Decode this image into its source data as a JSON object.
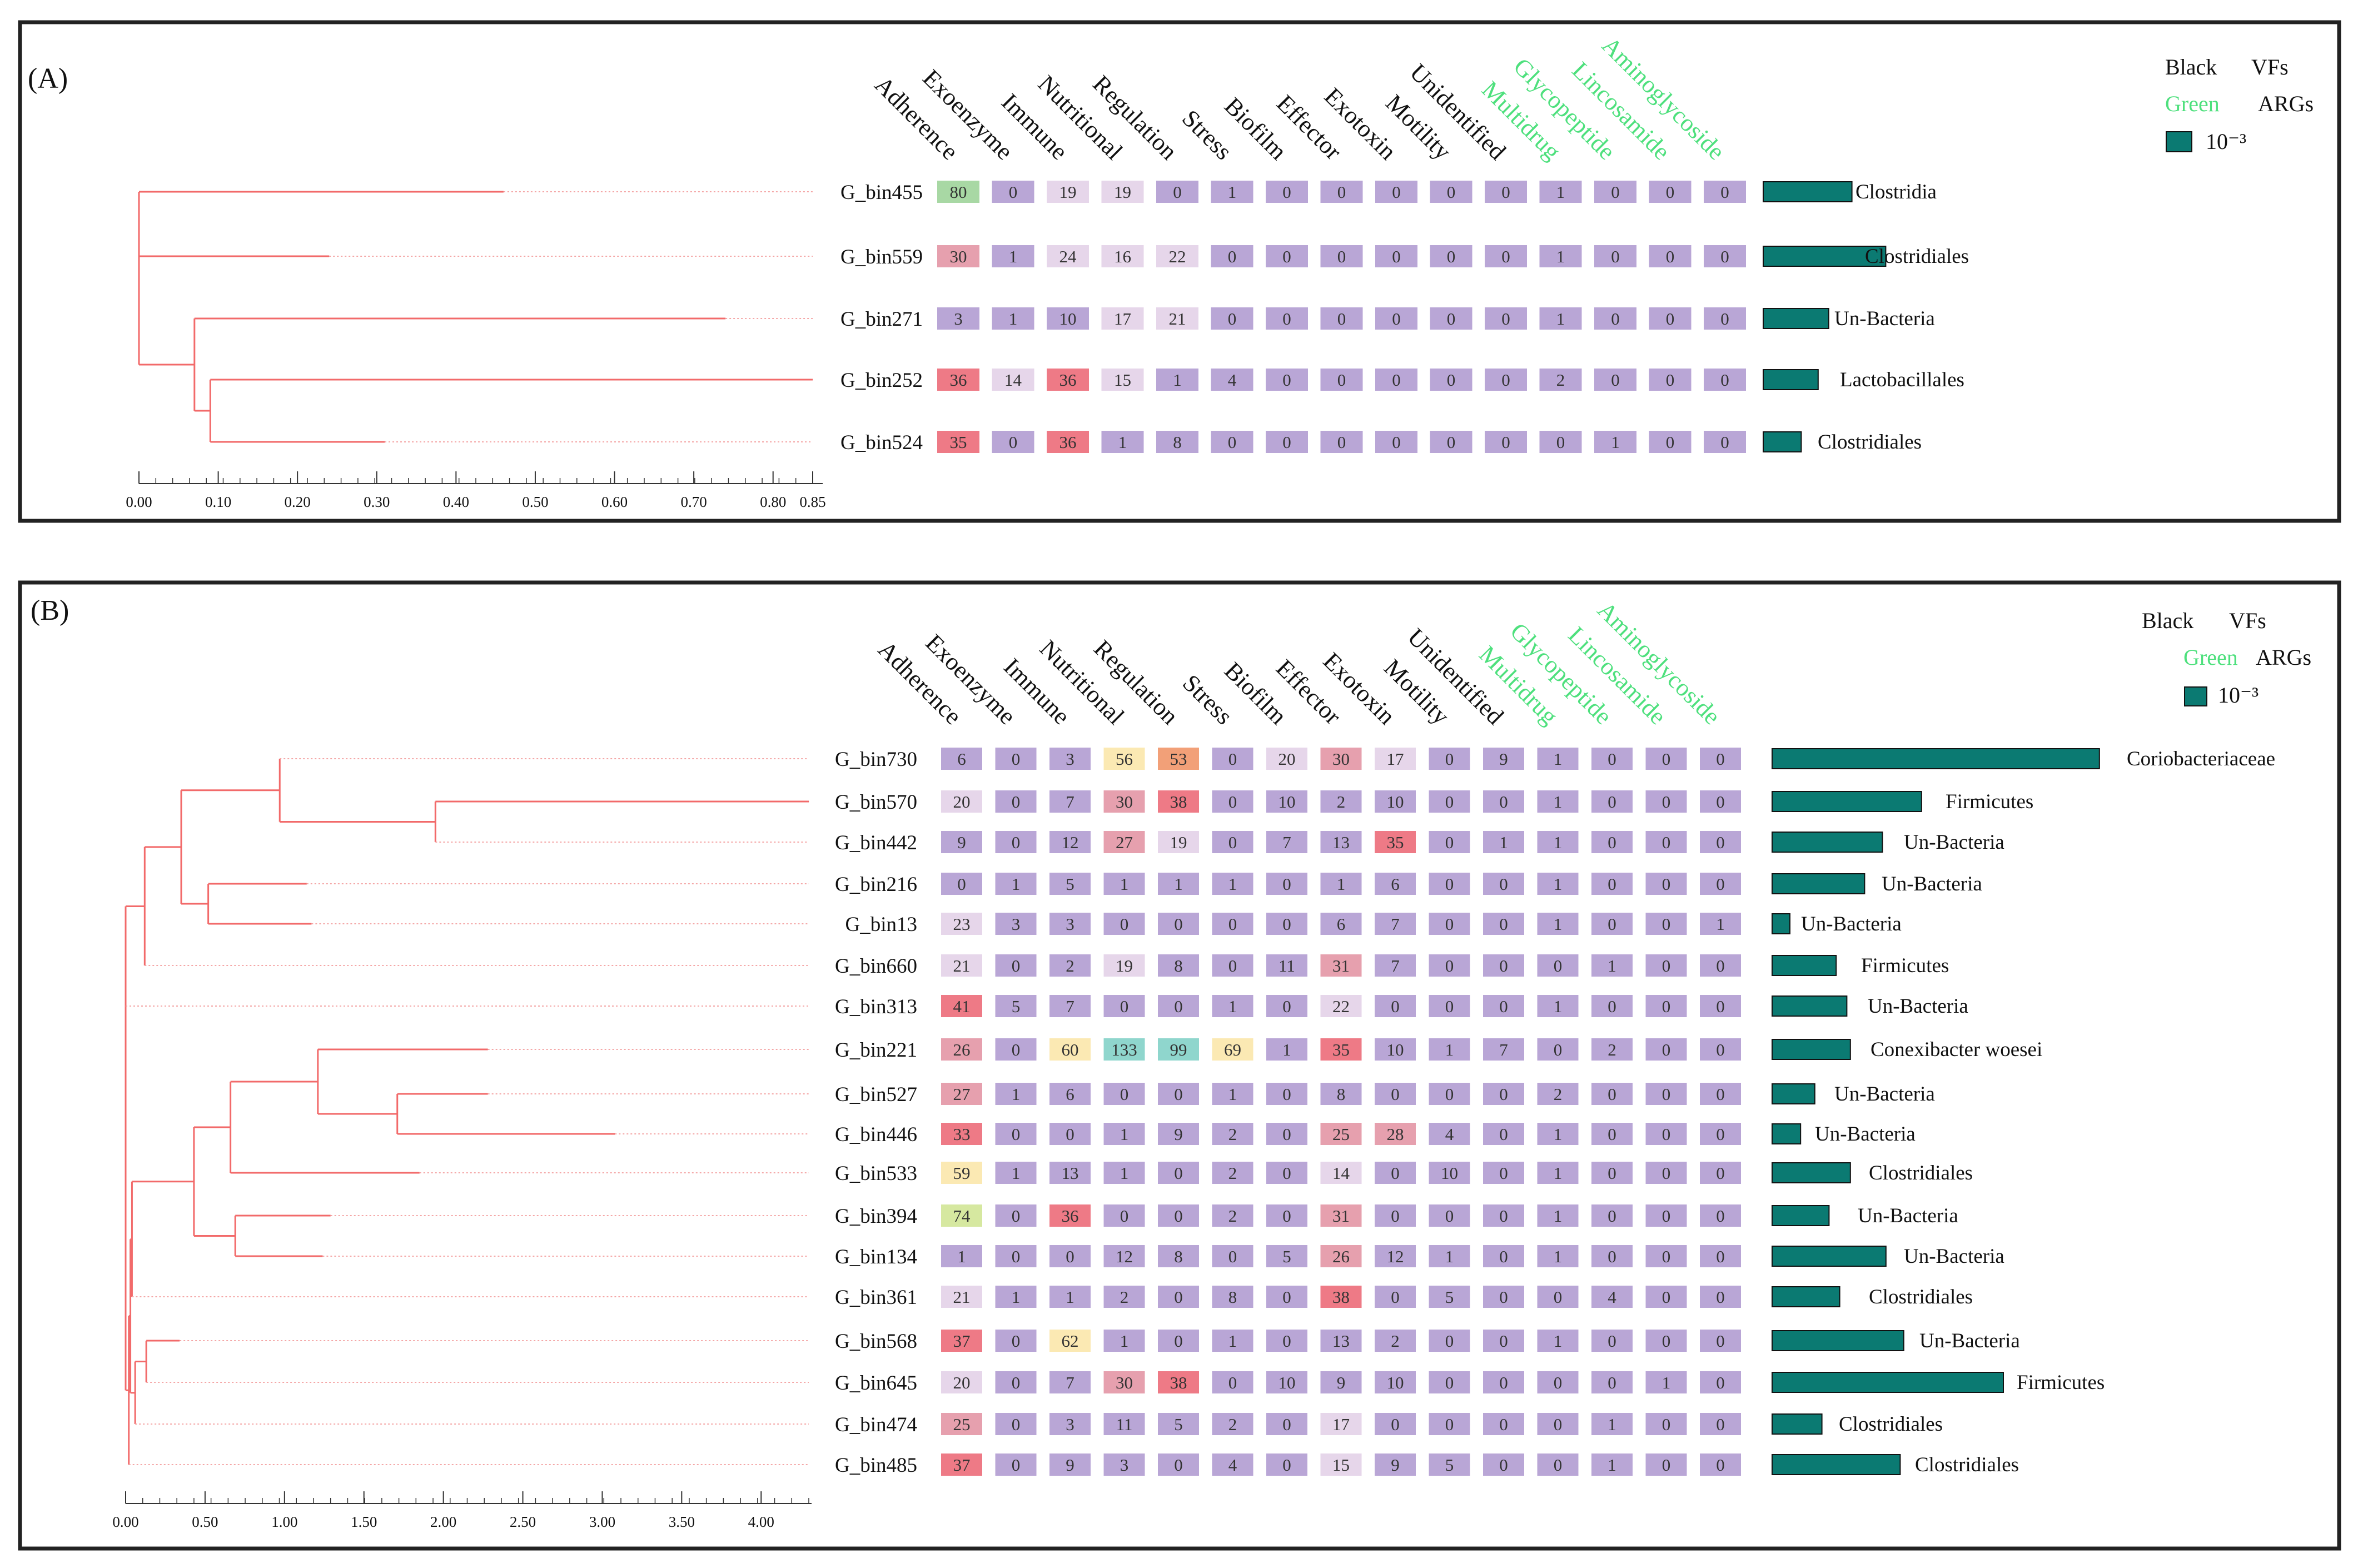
{
  "panel_labels": [
    "(A)",
    "(B)"
  ],
  "legend": {
    "vfs_color_word": "Black",
    "vfs_label": "VFs",
    "args_color_word": "Green",
    "args_label": "ARGs",
    "scale_label": "10⁻³"
  },
  "columns": [
    "Adherence",
    "Exoenzyme",
    "Immune",
    "Nutritional",
    "Regulation",
    "Stress",
    "Biofilm",
    "Effector",
    "Exotoxin",
    "Motility",
    "Unidentified",
    "Multidrug",
    "Glycopeptide",
    "Lincosamide",
    "Aminoglycoside"
  ],
  "arg_columns": [
    "Multidrug",
    "Glycopeptide",
    "Lincosamide",
    "Aminoglycoside"
  ],
  "colors": {
    "dendrogram": "#f26a6a",
    "cell_base": "#b9a6d6",
    "cell_light": "#e6d6ea",
    "cell_pink": "#e6a0ae",
    "cell_red": "#ee7a86",
    "cell_yellow": "#fbe9b3",
    "cell_orange": "#f2a078",
    "cell_teal": "#8fd6cd",
    "cell_green": "#a8d8a4",
    "cell_yellowgreen": "#d6e8a0",
    "abundance_bar": "#0b7a72",
    "args_text": "#4ee07d",
    "frame": "#222222"
  },
  "chart_data": [
    {
      "type": "heatmap",
      "panel": "(A)",
      "rows": [
        "G_bin455",
        "G_bin559",
        "G_bin271",
        "G_bin252",
        "G_bin524"
      ],
      "values": [
        [
          80,
          0,
          19,
          19,
          0,
          1,
          0,
          0,
          0,
          0,
          0,
          1,
          0,
          0,
          0
        ],
        [
          30,
          1,
          24,
          16,
          22,
          0,
          0,
          0,
          0,
          0,
          0,
          1,
          0,
          0,
          0
        ],
        [
          3,
          1,
          10,
          17,
          21,
          0,
          0,
          0,
          0,
          0,
          0,
          1,
          0,
          0,
          0
        ],
        [
          36,
          14,
          36,
          15,
          1,
          4,
          0,
          0,
          0,
          0,
          0,
          2,
          0,
          0,
          0
        ],
        [
          35,
          0,
          36,
          1,
          8,
          0,
          0,
          0,
          0,
          0,
          0,
          0,
          1,
          0,
          0
        ]
      ],
      "taxonomy": [
        "Clostridia",
        "Clostridiales",
        "Un-Bacteria",
        "Lactobacillales",
        "Clostridiales"
      ],
      "abundance": [
        0.42,
        0.58,
        0.31,
        0.26,
        0.18
      ],
      "dendrogram": {
        "xlim": [
          0,
          0.85
        ],
        "ticks": [
          "0.00",
          "0.10",
          "0.20",
          "0.30",
          "0.40",
          "0.50",
          "0.60",
          "0.70",
          "0.80",
          "0.85"
        ],
        "tick_values": [
          0,
          0.1,
          0.2,
          0.3,
          0.4,
          0.5,
          0.6,
          0.7,
          0.8,
          0.85
        ],
        "nodes": {
          "n1": {
            "h": 0.09,
            "children": [
              "G_bin252",
              "G_bin524"
            ]
          },
          "n2": {
            "h": 0.07,
            "children": [
              "G_bin271",
              "n1"
            ]
          },
          "n3": {
            "h": 0.0,
            "children": [
              "G_bin455",
              "G_bin559",
              "n2"
            ]
          }
        },
        "leaf_heights": {
          "G_bin455": 0.46,
          "G_bin559": 0.24,
          "G_bin271": 0.74,
          "G_bin252": 0.85,
          "G_bin524": 0.31
        }
      }
    },
    {
      "type": "heatmap",
      "panel": "(B)",
      "rows": [
        "G_bin730",
        "G_bin570",
        "G_bin442",
        "G_bin216",
        "G_bin13",
        "G_bin660",
        "G_bin313",
        "G_bin221",
        "G_bin527",
        "G_bin446",
        "G_bin533",
        "G_bin394",
        "G_bin134",
        "G_bin361",
        "G_bin568",
        "G_bin645",
        "G_bin474",
        "G_bin485"
      ],
      "values": [
        [
          6,
          0,
          3,
          56,
          53,
          0,
          20,
          30,
          17,
          0,
          9,
          1,
          0,
          0,
          0
        ],
        [
          20,
          0,
          7,
          30,
          38,
          0,
          10,
          2,
          10,
          0,
          0,
          1,
          0,
          0,
          0
        ],
        [
          9,
          0,
          12,
          27,
          19,
          0,
          7,
          13,
          35,
          0,
          1,
          1,
          0,
          0,
          0
        ],
        [
          0,
          1,
          5,
          1,
          1,
          1,
          0,
          1,
          6,
          0,
          0,
          1,
          0,
          0,
          0
        ],
        [
          23,
          3,
          3,
          0,
          0,
          0,
          0,
          6,
          7,
          0,
          0,
          1,
          0,
          0,
          1
        ],
        [
          21,
          0,
          2,
          19,
          8,
          0,
          11,
          31,
          7,
          0,
          0,
          0,
          1,
          0,
          0
        ],
        [
          41,
          5,
          7,
          0,
          0,
          1,
          0,
          22,
          0,
          0,
          0,
          1,
          0,
          0,
          0
        ],
        [
          26,
          0,
          60,
          133,
          99,
          69,
          1,
          35,
          10,
          1,
          7,
          0,
          2,
          0,
          0
        ],
        [
          27,
          1,
          6,
          0,
          0,
          1,
          0,
          8,
          0,
          0,
          0,
          2,
          0,
          0,
          0
        ],
        [
          33,
          0,
          0,
          1,
          9,
          2,
          0,
          25,
          28,
          4,
          0,
          1,
          0,
          0,
          0
        ],
        [
          59,
          1,
          13,
          1,
          0,
          2,
          0,
          14,
          0,
          10,
          0,
          1,
          0,
          0,
          0
        ],
        [
          74,
          0,
          36,
          0,
          0,
          2,
          0,
          31,
          0,
          0,
          0,
          1,
          0,
          0,
          0
        ],
        [
          1,
          0,
          0,
          12,
          8,
          0,
          5,
          26,
          12,
          1,
          0,
          1,
          0,
          0,
          0
        ],
        [
          21,
          1,
          1,
          2,
          0,
          8,
          0,
          38,
          0,
          5,
          0,
          0,
          4,
          0,
          0
        ],
        [
          37,
          0,
          62,
          1,
          0,
          1,
          0,
          13,
          2,
          0,
          0,
          1,
          0,
          0,
          0
        ],
        [
          20,
          0,
          7,
          30,
          38,
          0,
          10,
          9,
          10,
          0,
          0,
          0,
          0,
          1,
          0
        ],
        [
          25,
          0,
          3,
          11,
          5,
          2,
          0,
          17,
          0,
          0,
          0,
          0,
          1,
          0,
          0
        ],
        [
          37,
          0,
          9,
          3,
          0,
          4,
          0,
          15,
          9,
          5,
          0,
          0,
          1,
          0,
          0
        ]
      ],
      "taxonomy": [
        "Coriobacteriaceae",
        "Firmicutes",
        "Un-Bacteria",
        "Un-Bacteria",
        "Un-Bacteria",
        "Firmicutes",
        "Un-Bacteria",
        "Conexibacter woesei",
        "Un-Bacteria",
        "Un-Bacteria",
        "Clostridiales",
        "Un-Bacteria",
        "Un-Bacteria",
        "Clostridiales",
        "Un-Bacteria",
        "Firmicutes",
        "Clostridiales",
        "Clostridiales"
      ],
      "abundance": [
        0.92,
        0.42,
        0.31,
        0.26,
        0.05,
        0.18,
        0.21,
        0.22,
        0.12,
        0.08,
        0.22,
        0.16,
        0.32,
        0.19,
        0.37,
        0.65,
        0.14,
        0.36
      ],
      "dendrogram": {
        "xlim": [
          0,
          4.3
        ],
        "ticks": [
          "0.00",
          "0.50",
          "1.00",
          "1.50",
          "2.00",
          "2.50",
          "3.00",
          "3.50",
          "4.00"
        ],
        "tick_values": [
          0,
          0.5,
          1,
          1.5,
          2,
          2.5,
          3,
          3.5,
          4
        ],
        "nodes": {
          "a1": {
            "h": 1.95,
            "children": [
              "G_bin570",
              "G_bin442"
            ]
          },
          "a2": {
            "h": 0.97,
            "children": [
              "G_bin730",
              "a1"
            ]
          },
          "a3": {
            "h": 0.52,
            "children": [
              "G_bin216",
              "G_bin13"
            ]
          },
          "a4": {
            "h": 0.35,
            "children": [
              "a2",
              "a3"
            ]
          },
          "a5": {
            "h": 0.12,
            "children": [
              "a4",
              "G_bin660"
            ]
          },
          "b1": {
            "h": 1.71,
            "children": [
              "G_bin527",
              "G_bin446"
            ]
          },
          "b2": {
            "h": 1.21,
            "children": [
              "G_bin221",
              "b1"
            ]
          },
          "b3": {
            "h": 0.66,
            "children": [
              "b2",
              "G_bin533"
            ]
          },
          "b4": {
            "h": 0.69,
            "children": [
              "G_bin394",
              "G_bin134"
            ]
          },
          "b5": {
            "h": 0.43,
            "children": [
              "b3",
              "b4"
            ]
          },
          "b6": {
            "h": 0.04,
            "children": [
              "b5",
              "G_bin361"
            ]
          },
          "c1": {
            "h": 0.13,
            "children": [
              "G_bin568",
              "G_bin645"
            ]
          },
          "c2": {
            "h": 0.06,
            "children": [
              "c1",
              "G_bin474"
            ]
          },
          "c3": {
            "h": 0.03,
            "children": [
              "b6",
              "c2"
            ]
          },
          "d1": {
            "h": 0.02,
            "children": [
              "c3",
              "G_bin485"
            ]
          },
          "d2": {
            "h": 0.0,
            "children": [
              "a5",
              "G_bin313",
              "d1"
            ]
          }
        },
        "leaf_heights": {
          "G_bin730": 4.3,
          "G_bin570": 4.3,
          "G_bin442": 4.3,
          "G_bin216": 4.3,
          "G_bin13": 4.3,
          "G_bin660": 4.3,
          "G_bin313": 4.3,
          "G_bin221": 4.3,
          "G_bin527": 4.3,
          "G_bin446": 4.3,
          "G_bin533": 4.3,
          "G_bin394": 4.3,
          "G_bin134": 4.3,
          "G_bin361": 4.3,
          "G_bin568": 4.3,
          "G_bin645": 4.3,
          "G_bin474": 4.3,
          "G_bin485": 4.3
        },
        "branch_ends": {
          "G_bin730": 0.97,
          "G_bin570": 4.3,
          "G_bin442": 1.95,
          "G_bin216": 1.14,
          "G_bin13": 1.17,
          "G_bin660": 0.12,
          "G_bin313": 0.0,
          "G_bin221": 2.28,
          "G_bin527": 2.28,
          "G_bin446": 3.08,
          "G_bin533": 1.85,
          "G_bin394": 1.29,
          "G_bin134": 1.24,
          "G_bin361": 0.04,
          "G_bin568": 0.34,
          "G_bin645": 0.13,
          "G_bin474": 0.06,
          "G_bin485": 0.02
        }
      }
    }
  ]
}
